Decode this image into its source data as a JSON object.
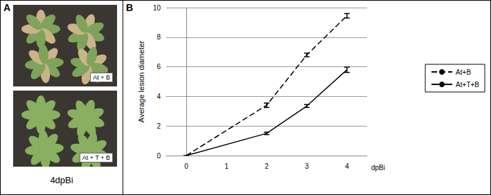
{
  "panels": {
    "A": {
      "label": "A",
      "photos": [
        "At + B",
        "At + T + B"
      ],
      "caption": "4dpBi"
    },
    "B": {
      "label": "B"
    }
  },
  "chart_data": {
    "type": "line",
    "x_label": "dpBi",
    "y_label": "Average lesion diameter",
    "xlim": [
      -0.5,
      4.5
    ],
    "xticks": [
      0,
      1,
      2,
      3,
      4
    ],
    "ylim": [
      0,
      10
    ],
    "yticks": [
      0,
      2,
      4,
      6,
      8,
      10
    ],
    "grid": true,
    "legend": "right",
    "series": [
      {
        "name": "At+B",
        "color": "#000000",
        "line_style": "dashed",
        "x": [
          0,
          2,
          3,
          4
        ],
        "values": [
          0,
          3.4,
          6.8,
          9.45
        ],
        "errors": [
          0,
          0.15,
          0.12,
          0.15
        ]
      },
      {
        "name": "At+T+B",
        "color": "#000000",
        "line_style": "solid",
        "x": [
          0,
          2,
          3,
          4
        ],
        "values": [
          0,
          1.5,
          3.35,
          5.8
        ],
        "errors": [
          0,
          0.08,
          0.1,
          0.18
        ]
      }
    ]
  }
}
